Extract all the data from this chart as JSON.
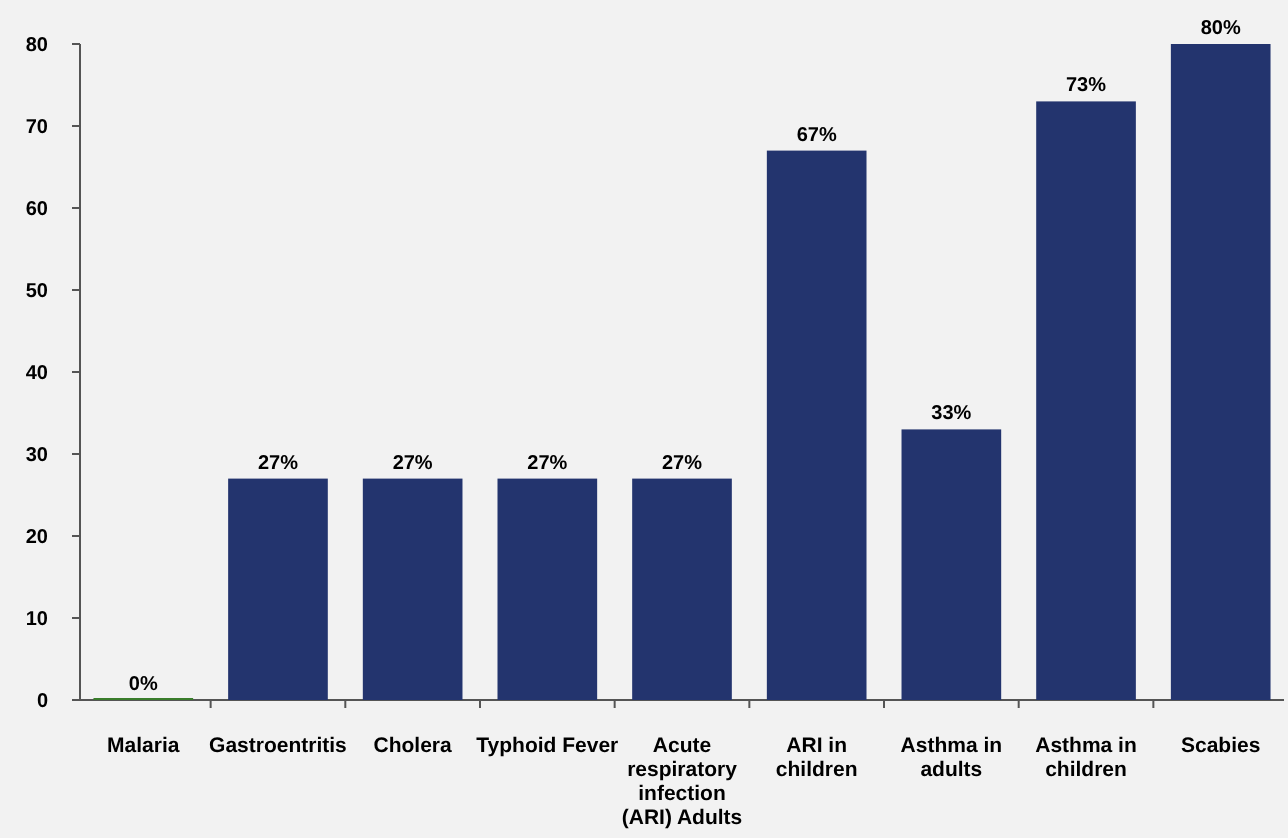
{
  "chart_data": {
    "type": "bar",
    "categories": [
      "Malaria",
      "Gastroentritis",
      "Cholera",
      "Typhoid Fever",
      "Acute respiratory infection (ARI) Adults",
      "ARI in children",
      "Asthma in adults",
      "Asthma in children",
      "Scabies"
    ],
    "values": [
      0,
      27,
      27,
      27,
      27,
      67,
      33,
      73,
      80
    ],
    "colors": [
      "#3a7d2c",
      "#23346e",
      "#23346e",
      "#23346e",
      "#23346e",
      "#23346e",
      "#23346e",
      "#23346e",
      "#23346e"
    ],
    "value_labels": [
      "0%",
      "27%",
      "27%",
      "27%",
      "27%",
      "67%",
      "33%",
      "73%",
      "80%"
    ],
    "ylim": [
      0,
      80
    ],
    "yticks": [
      0,
      10,
      20,
      30,
      40,
      50,
      60,
      70,
      80
    ],
    "grid": false
  }
}
